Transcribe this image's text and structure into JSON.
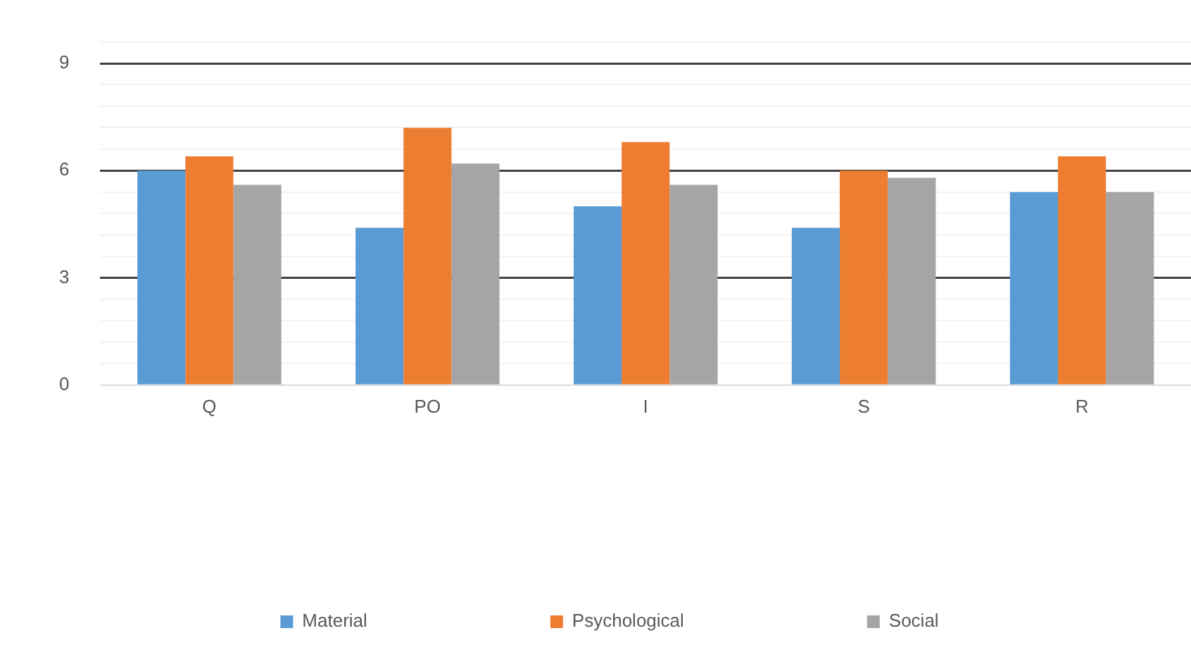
{
  "chart_data": {
    "type": "bar",
    "categories": [
      "Q",
      "PO",
      "I",
      "S",
      "R"
    ],
    "series": [
      {
        "name": "Material",
        "color": "#5b9bd5",
        "values": [
          6.0,
          4.4,
          5.0,
          4.4,
          5.4
        ]
      },
      {
        "name": "Psychological",
        "color": "#ed7d31",
        "values": [
          6.4,
          7.2,
          6.8,
          6.0,
          6.4
        ]
      },
      {
        "name": "Social",
        "color": "#a5a5a5",
        "values": [
          5.6,
          6.2,
          5.6,
          5.8,
          5.4
        ]
      }
    ],
    "ylim": [
      0,
      9.6
    ],
    "yticks": [
      0,
      {
        "value": 0.6,
        "label": null
      },
      {
        "value": 1.2,
        "label": null
      },
      {
        "value": 1.8,
        "label": null
      },
      {
        "value": 2.4,
        "label": null
      },
      3,
      {
        "value": 3.6,
        "label": null
      },
      {
        "value": 4.2,
        "label": null
      },
      {
        "value": 4.8,
        "label": null
      },
      {
        "value": 5.4,
        "label": null
      },
      6,
      {
        "value": 6.6,
        "label": null
      },
      {
        "value": 7.2,
        "label": null
      },
      {
        "value": 7.8,
        "label": null
      },
      {
        "value": 8.4,
        "label": null
      },
      9,
      {
        "value": 9.6,
        "label": null
      }
    ],
    "grid": "y",
    "legend": "bottom"
  }
}
